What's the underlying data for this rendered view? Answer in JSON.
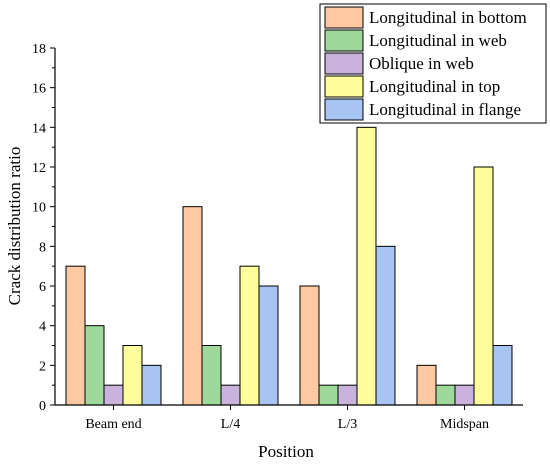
{
  "chart_data": {
    "type": "bar",
    "title": "",
    "xlabel": "Position",
    "ylabel": "Crack distribution ratio",
    "categories": [
      "Beam end",
      "L/4",
      "L/3",
      "Midspan"
    ],
    "ylim": [
      0,
      18
    ],
    "yticks": [
      0,
      2,
      4,
      6,
      8,
      10,
      12,
      14,
      16,
      18
    ],
    "grid": false,
    "legend_position": "top-right",
    "series": [
      {
        "name": "Longitudinal in bottom",
        "color": "#FCC9A2",
        "values": [
          7,
          10,
          6,
          2
        ]
      },
      {
        "name": "Longitudinal in web",
        "color": "#9ED89A",
        "values": [
          4,
          3,
          1,
          1
        ]
      },
      {
        "name": "Oblique in web",
        "color": "#C9B3DC",
        "values": [
          1,
          1,
          1,
          1
        ]
      },
      {
        "name": "Longitudinal in top",
        "color": "#FDFD9C",
        "values": [
          3,
          7,
          14,
          12
        ]
      },
      {
        "name": "Longitudinal in flange",
        "color": "#A7C4F2",
        "values": [
          2,
          6,
          8,
          3
        ]
      }
    ]
  }
}
